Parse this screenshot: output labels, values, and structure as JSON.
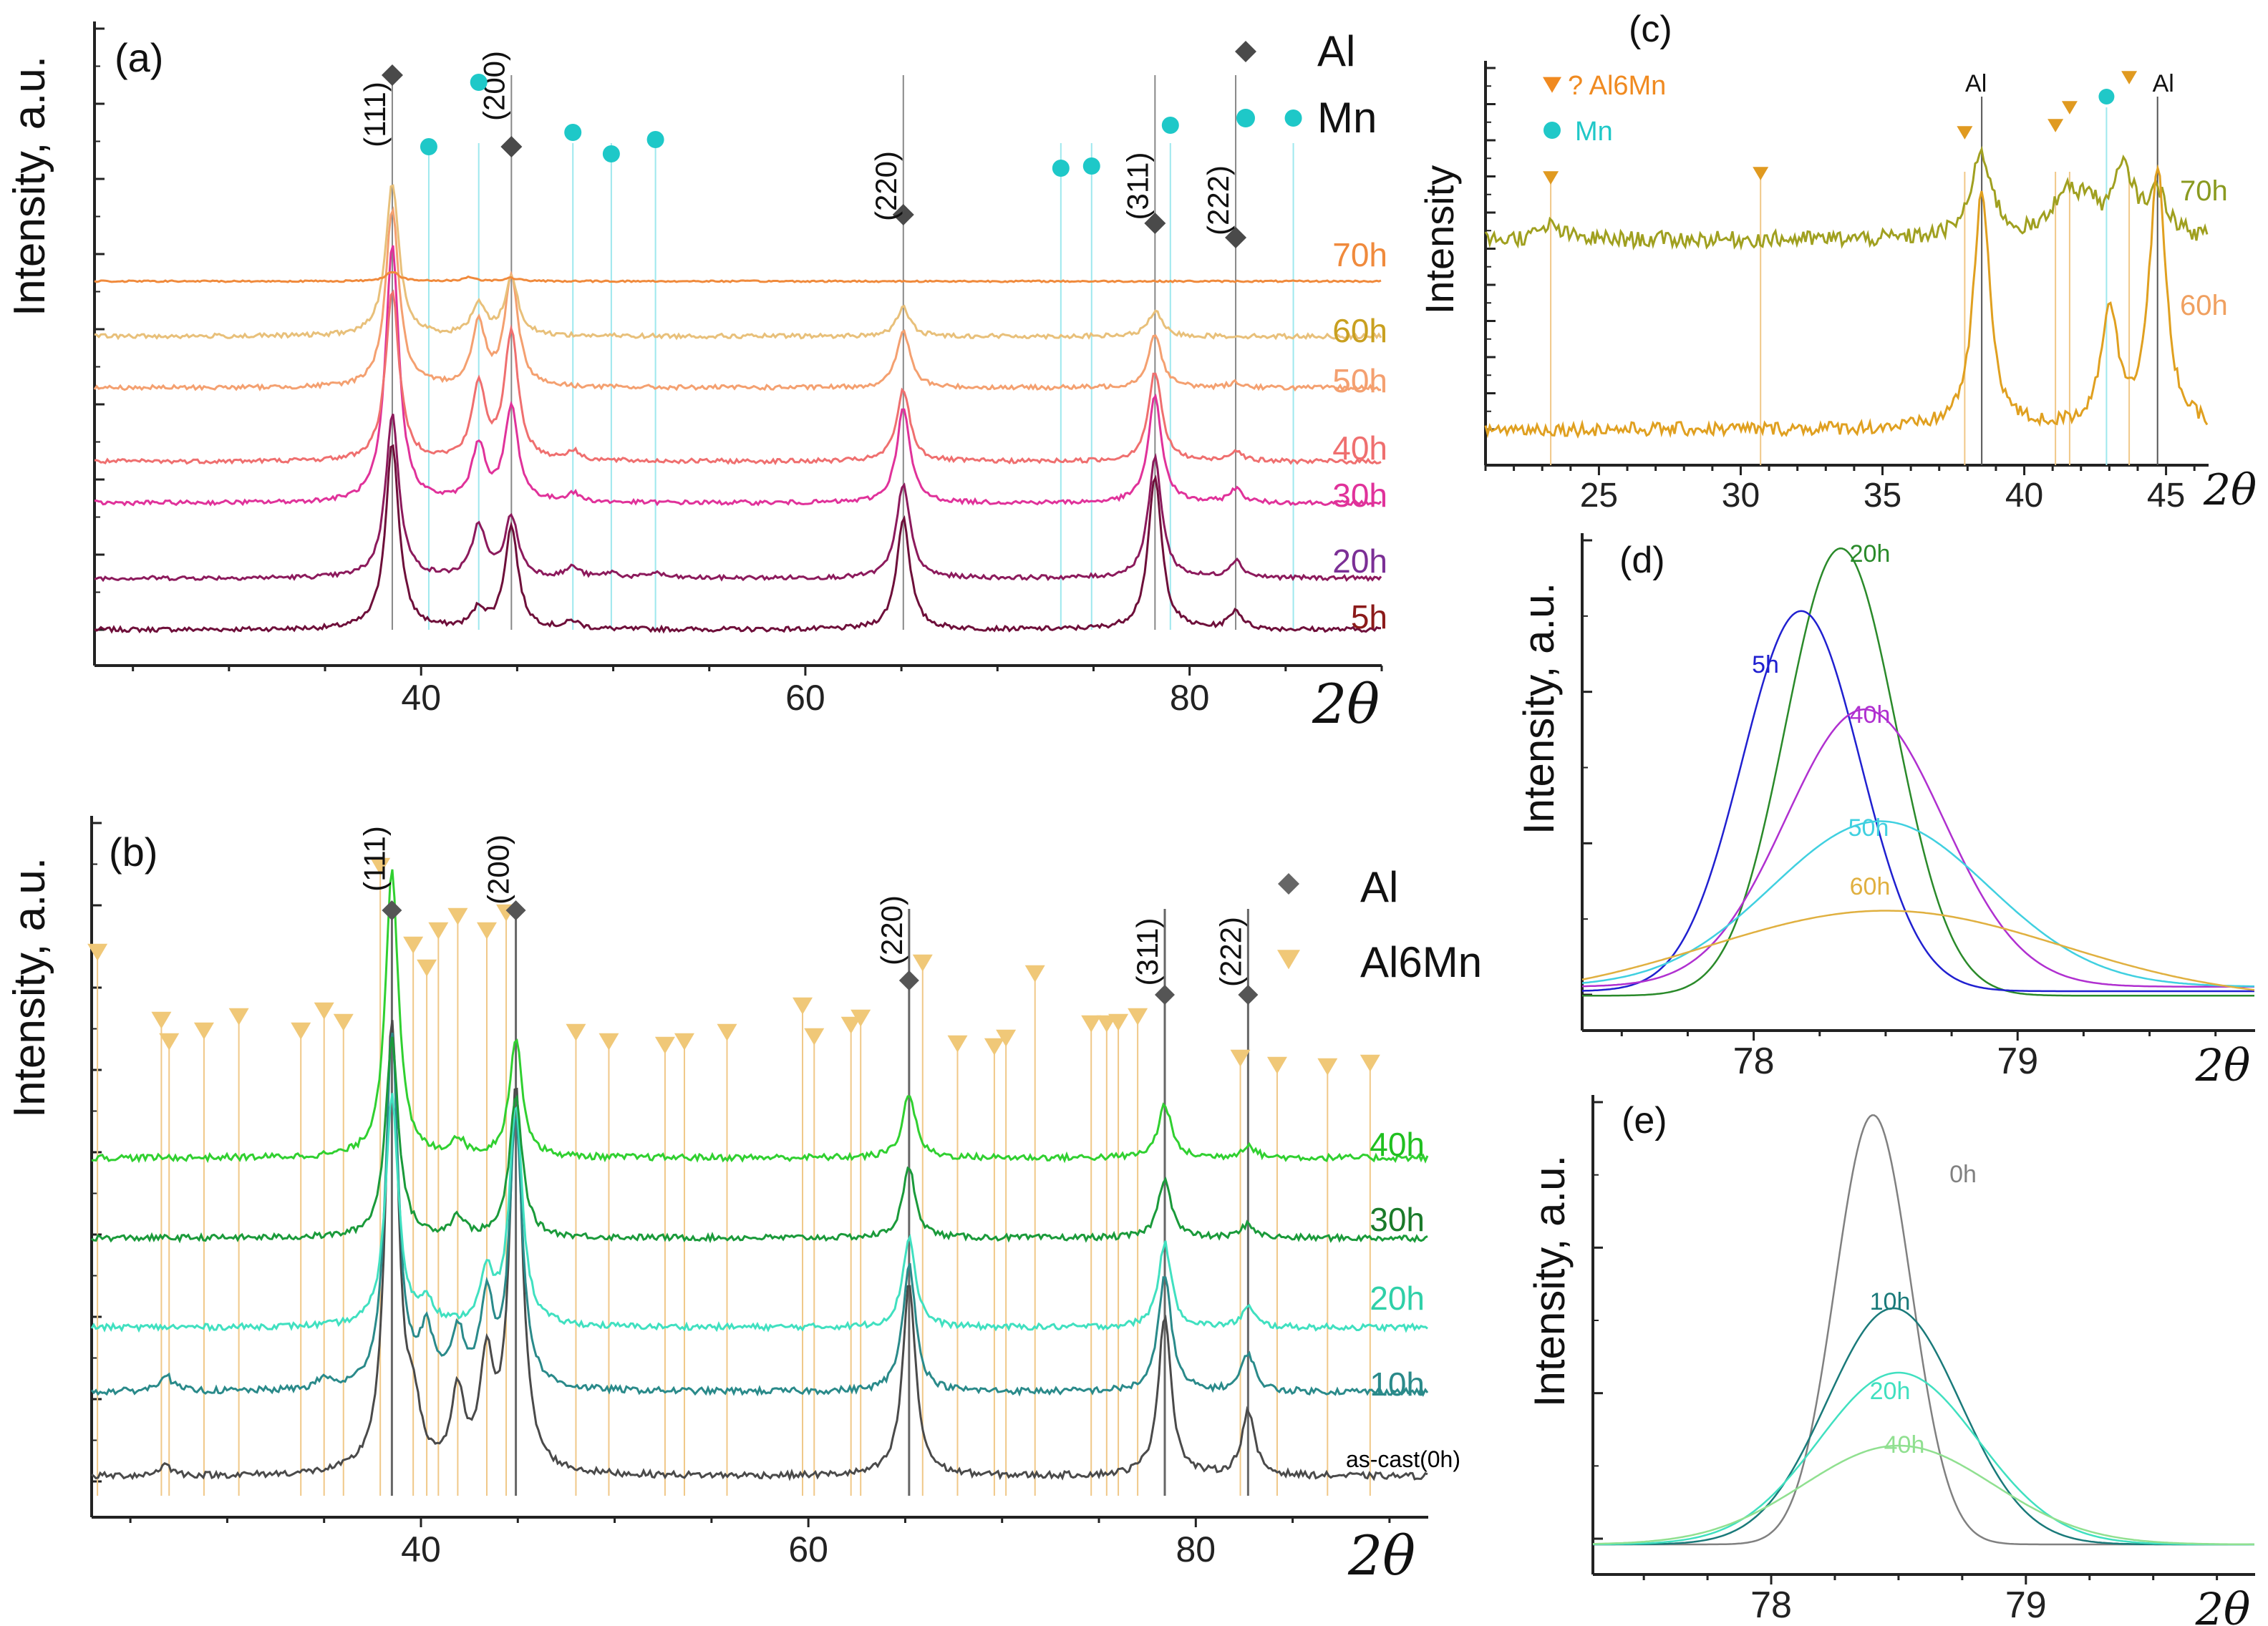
{
  "chart_data": [
    {
      "id": "a",
      "type": "line",
      "panel_label": "(a)",
      "xlabel": "2θ",
      "ylabel": "Intensity, a.u.",
      "xlim": [
        23,
        90
      ],
      "xticks": [
        40,
        60,
        80
      ],
      "grid": false,
      "legend": [
        {
          "label": "Al",
          "marker": "diamond",
          "color": "#4a4a4a"
        },
        {
          "label": "Mn",
          "marker": "circle",
          "color": "#1ec8c8"
        }
      ],
      "reflections": [
        {
          "label": "(111)",
          "x": 38.5
        },
        {
          "label": "(200)",
          "x": 44.7
        },
        {
          "label": "(220)",
          "x": 65.1
        },
        {
          "label": "(311)",
          "x": 78.2
        },
        {
          "label": "(222)",
          "x": 82.4
        }
      ],
      "al_markers": [
        38.5,
        44.7,
        65.1,
        78.2,
        82.4
      ],
      "mn_markers": [
        40.4,
        43.0,
        47.9,
        49.9,
        52.2,
        73.3,
        74.9,
        79.0,
        85.4
      ],
      "series": [
        {
          "name": "5h",
          "color": "#6e0f3a",
          "label_color": "#8b1a1a",
          "peaks": [
            [
              38.5,
              1.0
            ],
            [
              43.0,
              0.1
            ],
            [
              44.7,
              0.55
            ],
            [
              47.9,
              0.04
            ],
            [
              65.1,
              0.6
            ],
            [
              78.2,
              0.82
            ],
            [
              82.4,
              0.1
            ]
          ]
        },
        {
          "name": "20h",
          "color": "#8c1a5c",
          "label_color": "#7b2f95",
          "peaks": [
            [
              38.5,
              0.95
            ],
            [
              43.0,
              0.3
            ],
            [
              44.7,
              0.35
            ],
            [
              47.9,
              0.06
            ],
            [
              49.9,
              0.03
            ],
            [
              52.2,
              0.03
            ],
            [
              65.1,
              0.55
            ],
            [
              78.2,
              0.7
            ],
            [
              82.4,
              0.1
            ]
          ]
        },
        {
          "name": "30h",
          "color": "#e0329a",
          "label_color": "#e0329a",
          "peaks": [
            [
              38.5,
              1.5
            ],
            [
              43.0,
              0.33
            ],
            [
              44.7,
              0.55
            ],
            [
              47.9,
              0.05
            ],
            [
              65.1,
              0.55
            ],
            [
              78.2,
              0.62
            ],
            [
              82.4,
              0.08
            ]
          ]
        },
        {
          "name": "40h",
          "color": "#ef6f6f",
          "label_color": "#ef6f6f",
          "peaks": [
            [
              38.5,
              0.95
            ],
            [
              43.0,
              0.42
            ],
            [
              44.7,
              0.72
            ],
            [
              47.9,
              0.05
            ],
            [
              65.1,
              0.4
            ],
            [
              78.2,
              0.5
            ],
            [
              82.4,
              0.06
            ]
          ]
        },
        {
          "name": "50h",
          "color": "#f4a070",
          "label_color": "#f4a070",
          "peaks": [
            [
              38.5,
              1.0
            ],
            [
              43.0,
              0.35
            ],
            [
              44.7,
              0.62
            ],
            [
              65.1,
              0.32
            ],
            [
              78.2,
              0.3
            ],
            [
              82.4,
              0.03
            ]
          ]
        },
        {
          "name": "60h",
          "color": "#e8c07a",
          "label_color": "#c9a020",
          "peaks": [
            [
              38.5,
              0.85
            ],
            [
              43.0,
              0.18
            ],
            [
              44.7,
              0.32
            ],
            [
              65.1,
              0.16
            ],
            [
              78.2,
              0.14
            ]
          ]
        },
        {
          "name": "70h",
          "color": "#f08a3c",
          "label_color": "#f08a3c",
          "peaks": [
            [
              38.5,
              0.15
            ],
            [
              42.5,
              0.06
            ],
            [
              44.7,
              0.05
            ]
          ]
        }
      ]
    },
    {
      "id": "b",
      "type": "line",
      "panel_label": "(b)",
      "xlabel": "2θ",
      "ylabel": "Intensity, a.u.",
      "xlim": [
        23,
        92
      ],
      "xticks": [
        40,
        60,
        80
      ],
      "grid": false,
      "legend": [
        {
          "label": "Al",
          "marker": "diamond",
          "color": "#666666"
        },
        {
          "label": "Al6Mn",
          "marker": "triangle-down",
          "color": "#e8c070"
        }
      ],
      "reflections": [
        {
          "label": "(111)",
          "x": 38.5
        },
        {
          "label": "(200)",
          "x": 44.9
        },
        {
          "label": "(220)",
          "x": 65.2
        },
        {
          "label": "(311)",
          "x": 78.4
        },
        {
          "label": "(222)",
          "x": 82.7
        }
      ],
      "al_markers": [
        38.5,
        44.9,
        65.2,
        78.4,
        82.7
      ],
      "al6mn_markers": [
        23.3,
        26.6,
        27.0,
        28.8,
        30.6,
        33.8,
        35.0,
        36.0,
        37.9,
        39.6,
        40.3,
        40.9,
        41.9,
        43.4,
        44.4,
        48.0,
        49.7,
        52.6,
        53.6,
        55.8,
        59.7,
        60.3,
        62.2,
        62.7,
        65.9,
        67.7,
        69.6,
        70.2,
        71.7,
        74.6,
        75.4,
        76.0,
        77.0,
        82.3,
        84.2,
        86.8,
        89.0
      ],
      "series": [
        {
          "name": "as-cast(0h)",
          "color": "#4a4a4a",
          "label_color": "#000000",
          "peaks": [
            [
              26.8,
              0.05
            ],
            [
              38.5,
              2.1
            ],
            [
              39.6,
              0.25
            ],
            [
              41.9,
              0.35
            ],
            [
              43.4,
              0.5
            ],
            [
              44.9,
              1.8
            ],
            [
              65.2,
              0.9
            ],
            [
              78.4,
              0.75
            ],
            [
              82.7,
              0.3
            ]
          ]
        },
        {
          "name": "10h",
          "color": "#2a8a8a",
          "label_color": "#2a8a8a",
          "peaks": [
            [
              26.8,
              0.08
            ],
            [
              35.0,
              0.05
            ],
            [
              38.5,
              1.65
            ],
            [
              40.3,
              0.25
            ],
            [
              41.9,
              0.25
            ],
            [
              43.4,
              0.4
            ],
            [
              44.9,
              1.25
            ],
            [
              65.2,
              0.6
            ],
            [
              78.4,
              0.55
            ],
            [
              82.7,
              0.18
            ]
          ]
        },
        {
          "name": "20h",
          "color": "#40e0c0",
          "label_color": "#2fd0a8",
          "peaks": [
            [
              38.5,
              1.15
            ],
            [
              40.3,
              0.12
            ],
            [
              43.4,
              0.25
            ],
            [
              44.9,
              1.1
            ],
            [
              65.2,
              0.45
            ],
            [
              78.4,
              0.42
            ],
            [
              82.7,
              0.1
            ]
          ]
        },
        {
          "name": "30h",
          "color": "#1a9a3a",
          "label_color": "#1a7a2a",
          "peaks": [
            [
              38.5,
              1.0
            ],
            [
              41.9,
              0.1
            ],
            [
              44.9,
              0.7
            ],
            [
              65.2,
              0.35
            ],
            [
              78.4,
              0.3
            ],
            [
              82.7,
              0.07
            ]
          ]
        },
        {
          "name": "40h",
          "color": "#30d030",
          "label_color": "#20c020",
          "peaks": [
            [
              38.5,
              1.35
            ],
            [
              41.9,
              0.08
            ],
            [
              44.9,
              0.55
            ],
            [
              65.2,
              0.3
            ],
            [
              78.4,
              0.25
            ],
            [
              82.7,
              0.06
            ]
          ]
        }
      ]
    },
    {
      "id": "c",
      "type": "line",
      "panel_label": "(c)",
      "xlabel": "2θ",
      "ylabel": "Intensity",
      "xlim": [
        21,
        46.5
      ],
      "xticks": [
        25,
        30,
        35,
        40,
        45
      ],
      "grid": false,
      "legend": [
        {
          "label": "? Al6Mn",
          "marker": "triangle-down",
          "color": "#f08a20"
        },
        {
          "label": "Mn",
          "marker": "circle",
          "color": "#20c8c8"
        }
      ],
      "peak_labels": [
        {
          "label": "Al",
          "x": 38.5
        },
        {
          "label": "Al",
          "x": 44.7
        }
      ],
      "al_lines": [
        38.5,
        44.7
      ],
      "mn_markers": [
        42.9
      ],
      "al6mn_markers": [
        23.3,
        30.7,
        37.9,
        41.1,
        41.6,
        43.7
      ],
      "series": [
        {
          "name": "70h",
          "color": "#a0a020",
          "label_color": "#8a9a20",
          "peaks": [
            [
              23.3,
              0.3
            ],
            [
              38.5,
              1.8
            ],
            [
              41.4,
              0.9
            ],
            [
              42.2,
              0.7
            ],
            [
              43.5,
              1.4
            ],
            [
              44.7,
              0.9
            ]
          ]
        },
        {
          "name": "60h",
          "color": "#e0a020",
          "label_color": "#f0a060",
          "peaks": [
            [
              38.5,
              6.0
            ],
            [
              43.0,
              3.0
            ],
            [
              44.7,
              6.5
            ]
          ]
        }
      ]
    },
    {
      "id": "d",
      "type": "line",
      "panel_label": "(d)",
      "xlabel": "2θ",
      "ylabel": "Intensity, a.u.",
      "xlim": [
        77.35,
        79.9
      ],
      "xticks": [
        78,
        79
      ],
      "grid": false,
      "series": [
        {
          "name": "20h",
          "color": "#2a8a2a",
          "center": 78.33,
          "height": 1.0,
          "width": 0.28,
          "base": 0.03
        },
        {
          "name": "5h",
          "color": "#2020d0",
          "center": 78.18,
          "height": 0.85,
          "width": 0.3,
          "base": 0.04
        },
        {
          "name": "40h",
          "color": "#b030d0",
          "center": 78.42,
          "height": 0.62,
          "width": 0.4,
          "base": 0.05
        },
        {
          "name": "50h",
          "color": "#40d0e0",
          "center": 78.48,
          "height": 0.37,
          "width": 0.55,
          "base": 0.05
        },
        {
          "name": "60h",
          "color": "#e0b040",
          "center": 78.5,
          "height": 0.2,
          "width": 0.9,
          "base": 0.02
        }
      ]
    },
    {
      "id": "e",
      "type": "line",
      "panel_label": "(e)",
      "xlabel": "2θ",
      "ylabel": "Intensity, a.u.",
      "xlim": [
        77.3,
        79.9
      ],
      "xticks": [
        78,
        79
      ],
      "grid": false,
      "series": [
        {
          "name": "0h",
          "color": "#808080",
          "center": 78.4,
          "height": 1.0,
          "width": 0.2,
          "base": 0.02
        },
        {
          "name": "10h",
          "color": "#1a7a7a",
          "center": 78.48,
          "height": 0.55,
          "width": 0.35,
          "base": 0.02
        },
        {
          "name": "20h",
          "color": "#40e0c0",
          "center": 78.5,
          "height": 0.4,
          "width": 0.42,
          "base": 0.02
        },
        {
          "name": "40h",
          "color": "#90e090",
          "center": 78.5,
          "height": 0.23,
          "width": 0.5,
          "base": 0.02
        }
      ]
    }
  ]
}
